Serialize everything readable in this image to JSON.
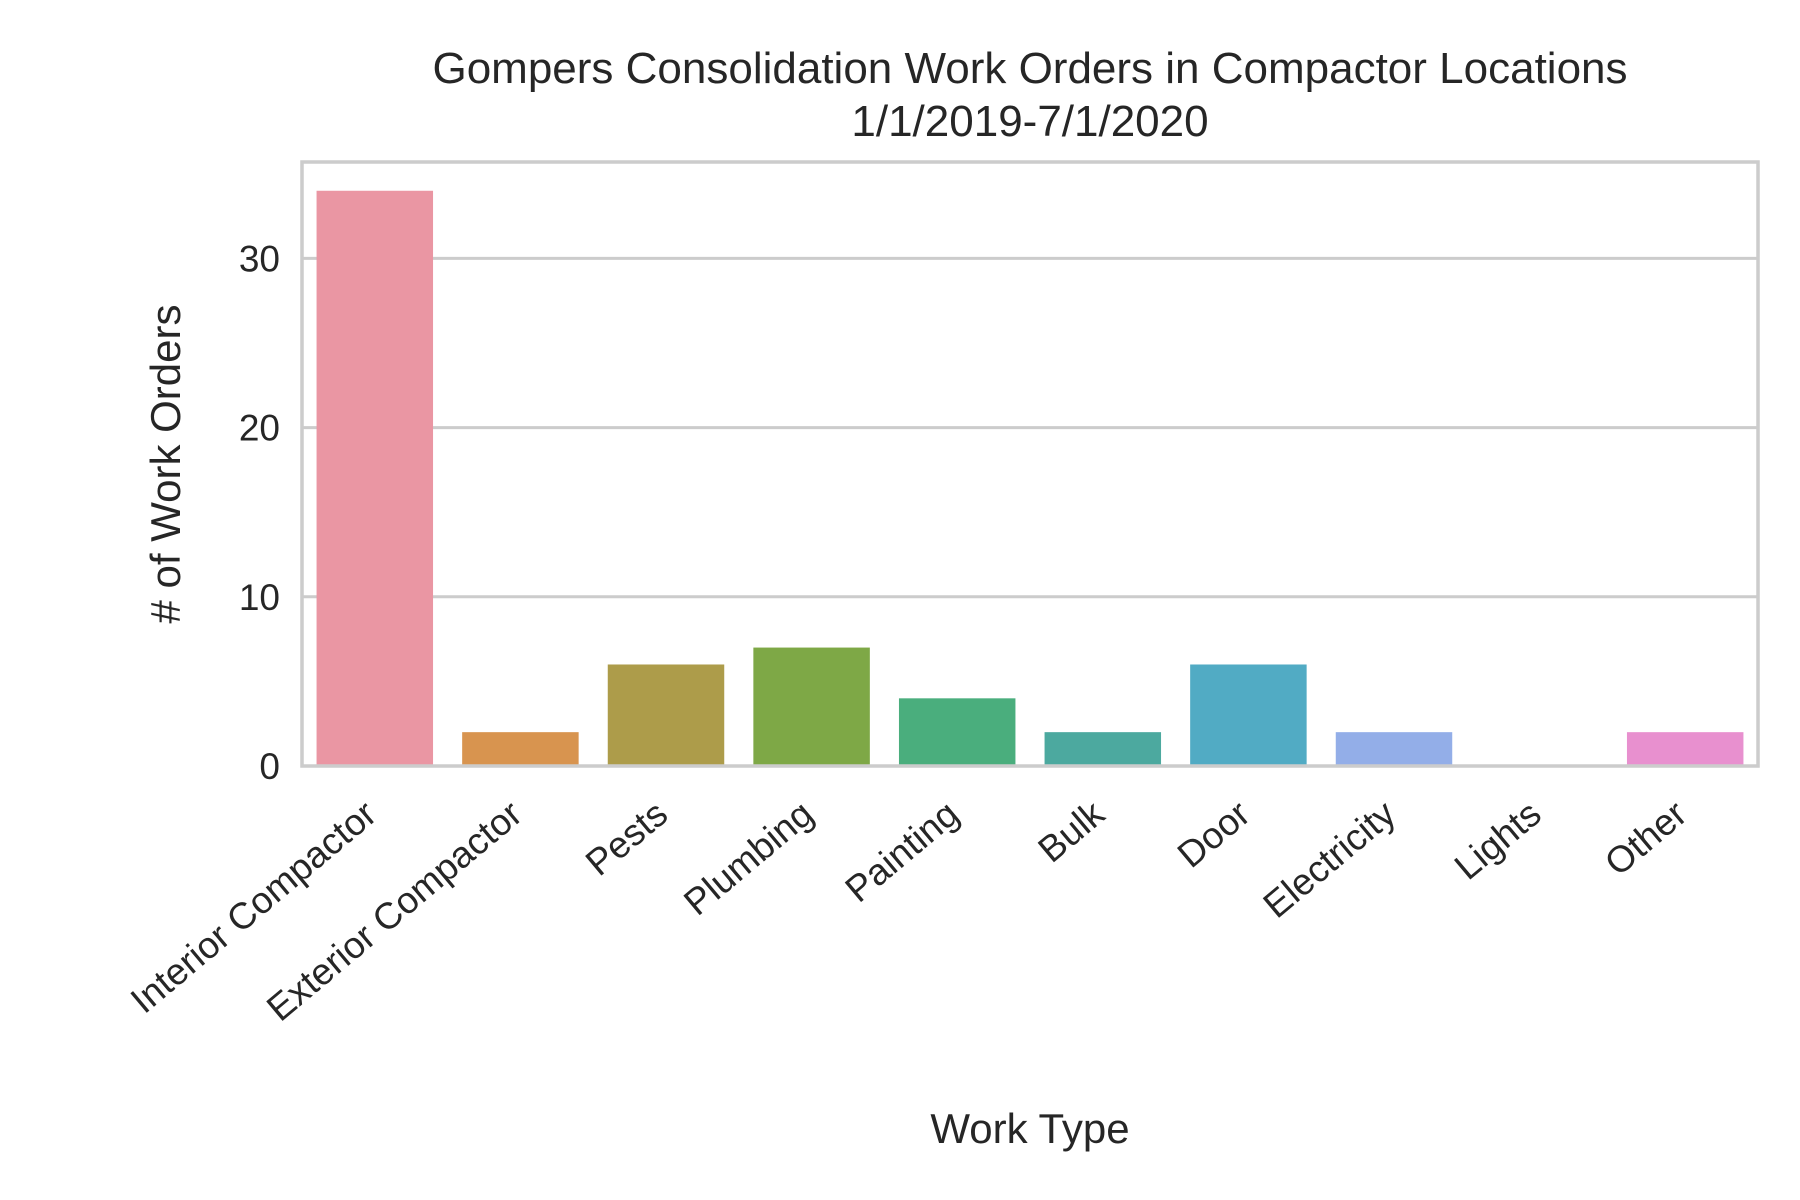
{
  "chart_data": {
    "type": "bar",
    "title": "Gompers Consolidation Work Orders in Compactor Locations",
    "subtitle": "1/1/2019-7/1/2020",
    "xlabel": "Work Type",
    "ylabel": "# of Work Orders",
    "categories": [
      "Interior Compactor",
      "Exterior Compactor",
      "Pests",
      "Plumbing",
      "Painting",
      "Bulk",
      "Door",
      "Electricity",
      "Lights",
      "Other"
    ],
    "values": [
      34,
      2,
      6,
      7,
      4,
      2,
      6,
      2,
      0,
      2
    ],
    "colors": [
      "#ea96a3",
      "#d8944f",
      "#ad9c4a",
      "#7ea846",
      "#4aae7d",
      "#4ca99f",
      "#51abc4",
      "#93aee8",
      "#c9a0e8",
      "#e890cf"
    ],
    "ylim": [
      0,
      35.7
    ],
    "yticks": [
      0,
      10,
      20,
      30
    ],
    "grid": true
  }
}
